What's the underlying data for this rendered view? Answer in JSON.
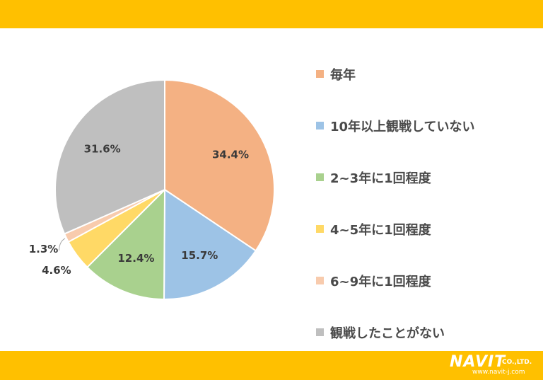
{
  "colors": {
    "band": "#FFC000",
    "background": "#FFFFFF",
    "text": "#404040"
  },
  "chart_data": {
    "type": "pie",
    "start_angle_deg": 0,
    "direction": "clockwise",
    "slices": [
      {
        "label": "毎年",
        "value": 34.4,
        "display": "34.4%",
        "color": "#F4B183"
      },
      {
        "label": "10年以上観戦していない",
        "value": 15.7,
        "display": "15.7%",
        "color": "#9DC3E6"
      },
      {
        "label": "2~3年に1回程度",
        "value": 12.4,
        "display": "12.4%",
        "color": "#A9D18E"
      },
      {
        "label": "4~5年に1回程度",
        "value": 4.6,
        "display": "4.6%",
        "color": "#FFD966"
      },
      {
        "label": "6~9年に1回程度",
        "value": 1.3,
        "display": "1.3%",
        "color": "#F8CBAD"
      },
      {
        "label": "観戦したことがない",
        "value": 31.6,
        "display": "31.6%",
        "color": "#BFBFBF"
      }
    ],
    "legend_position": "right"
  },
  "logo": {
    "name": "NAVIT",
    "suffix": "CO.,LTD.",
    "url": "www.navit-j.com"
  }
}
